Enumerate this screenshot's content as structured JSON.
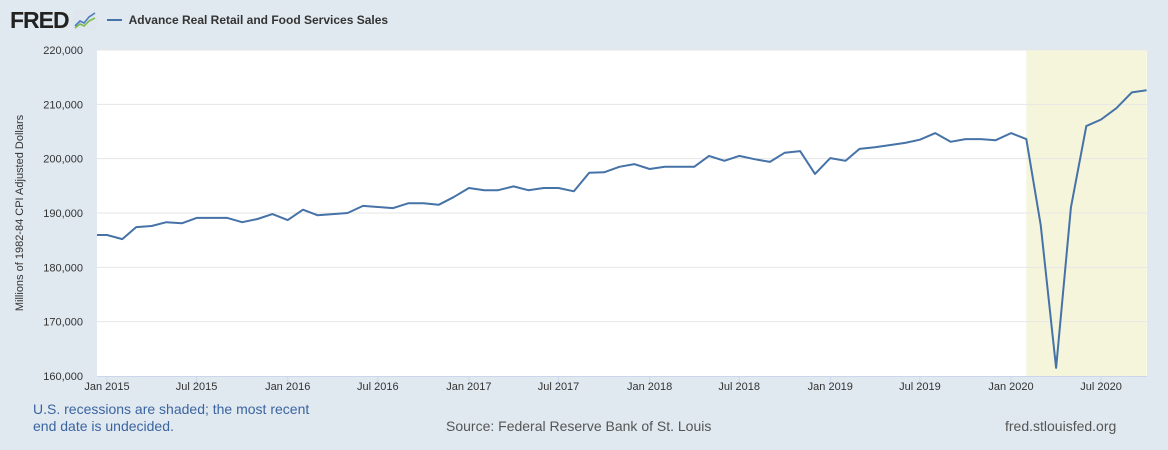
{
  "header": {
    "logo": "FRED",
    "logo_icon": "chart-line-icon",
    "legend_label": "Advance Real Retail and Food Services Sales"
  },
  "footer": {
    "recession_note": "U.S. recessions are shaded; the most recent end date is undecided.",
    "source": "Source: Federal Reserve Bank of St. Louis",
    "url": "fred.stlouisfed.org"
  },
  "colors": {
    "line": "#4572a7",
    "recession": "#f5f5dc",
    "background": "#e1e9f0",
    "plot": "#ffffff",
    "grid": "#e6e6e6",
    "note": "#3a64a0"
  },
  "chart_data": {
    "type": "line",
    "title": "Advance Real Retail and Food Services Sales",
    "xlabel": "",
    "ylabel": "Millions of 1982-84 CPI Adjusted Dollars",
    "ylim": [
      160000,
      220000
    ],
    "yticks": [
      "160,000",
      "170,000",
      "180,000",
      "190,000",
      "200,000",
      "210,000",
      "220,000"
    ],
    "ytick_values": [
      160000,
      170000,
      180000,
      190000,
      200000,
      210000,
      220000
    ],
    "xticks": [
      "Jan 2015",
      "Jul 2015",
      "Jan 2016",
      "Jul 2016",
      "Jan 2017",
      "Jul 2017",
      "Jan 2018",
      "Jul 2018",
      "Jan 2019",
      "Jul 2019",
      "Jan 2020",
      "Jul 2020"
    ],
    "xtick_dates": [
      "2015-01",
      "2015-07",
      "2016-01",
      "2016-07",
      "2017-01",
      "2017-07",
      "2018-01",
      "2018-07",
      "2019-01",
      "2019-07",
      "2020-01",
      "2020-07"
    ],
    "xlim": [
      "2014-12-20",
      "2020-10-01"
    ],
    "grid": true,
    "legend": "top-left",
    "recession_shading": [
      {
        "start": "2020-02",
        "end": "2020-10"
      }
    ],
    "series": [
      {
        "name": "Advance Real Retail and Food Services Sales",
        "x": [
          "2014-12",
          "2015-01",
          "2015-02",
          "2015-03",
          "2015-04",
          "2015-05",
          "2015-06",
          "2015-07",
          "2015-08",
          "2015-09",
          "2015-10",
          "2015-11",
          "2015-12",
          "2016-01",
          "2016-02",
          "2016-03",
          "2016-04",
          "2016-05",
          "2016-06",
          "2016-07",
          "2016-08",
          "2016-09",
          "2016-10",
          "2016-11",
          "2016-12",
          "2017-01",
          "2017-02",
          "2017-03",
          "2017-04",
          "2017-05",
          "2017-06",
          "2017-07",
          "2017-08",
          "2017-09",
          "2017-10",
          "2017-11",
          "2017-12",
          "2018-01",
          "2018-02",
          "2018-03",
          "2018-04",
          "2018-05",
          "2018-06",
          "2018-07",
          "2018-08",
          "2018-09",
          "2018-10",
          "2018-11",
          "2018-12",
          "2019-01",
          "2019-02",
          "2019-03",
          "2019-04",
          "2019-05",
          "2019-06",
          "2019-07",
          "2019-08",
          "2019-09",
          "2019-10",
          "2019-11",
          "2019-12",
          "2020-01",
          "2020-02",
          "2020-03",
          "2020-04",
          "2020-05",
          "2020-06",
          "2020-07",
          "2020-08",
          "2020-09",
          "2020-10"
        ],
        "values": [
          185950,
          185950,
          185200,
          187400,
          187600,
          188300,
          188100,
          189100,
          189100,
          189100,
          188300,
          188900,
          189800,
          188700,
          190600,
          189600,
          189800,
          190000,
          191300,
          191100,
          190900,
          191800,
          191800,
          191500,
          192900,
          194600,
          194200,
          194200,
          194900,
          194200,
          194600,
          194600,
          194000,
          197400,
          197500,
          198500,
          199000,
          198100,
          198500,
          198500,
          198500,
          200500,
          199600,
          200500,
          199900,
          199400,
          201100,
          201400,
          197200,
          200100,
          199600,
          201800,
          202100,
          202500,
          202900,
          203500,
          204700,
          203100,
          203600,
          203600,
          203400,
          204700,
          203600,
          187800,
          161500,
          191000,
          206000,
          207200,
          209300,
          212200,
          212600
        ]
      }
    ]
  }
}
